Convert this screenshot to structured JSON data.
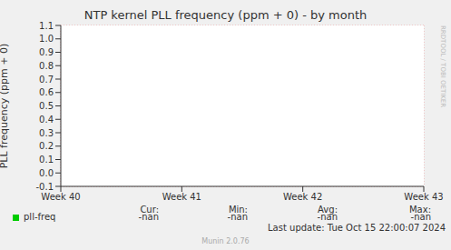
{
  "chart_data": {
    "type": "line",
    "title": "NTP kernel PLL frequency (ppm + 0) - by month",
    "y_label": "PLL frequency (ppm + 0)",
    "categories": [
      "Week 40",
      "Week 41",
      "Week 42",
      "Week 43"
    ],
    "series": [
      {
        "name": "pll-freq",
        "color": "#00cc00",
        "values": [
          null,
          null,
          null,
          null
        ]
      }
    ],
    "ylim": [
      -0.1,
      1.1
    ],
    "yticks": [
      -0.1,
      {
        "value": 0,
        "label": "0.0"
      },
      0.1,
      0.2,
      0.3,
      0.4,
      0.5,
      0.6,
      0.7,
      0.8,
      0.9,
      {
        "value": 1,
        "label": "1.0"
      },
      1.1
    ],
    "grid": true,
    "legend_table": {
      "headers": [
        "Cur:",
        "Min:",
        "Avg:",
        "Max:"
      ],
      "rows": [
        {
          "name": "pll-freq",
          "cells": [
            "-nan",
            "-nan",
            "-nan",
            "-nan"
          ]
        }
      ]
    },
    "annotations": [
      "Last update: Tue Oct 15 22:00:07 2024",
      "Munin 2.0.76",
      "RRDTOOL / TOBI OETIKER"
    ]
  }
}
